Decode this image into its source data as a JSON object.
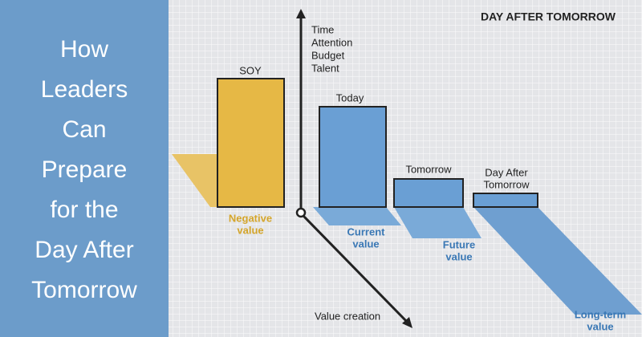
{
  "headline": {
    "lines": [
      "How",
      "Leaders",
      "Can",
      "Prepare",
      "for the",
      "Day After",
      "Tomorrow"
    ]
  },
  "diagram": {
    "title": "DAY AFTER TOMORROW",
    "vertical_axis": {
      "lines": [
        "Time",
        "Attention",
        "Budget",
        "Talent"
      ]
    },
    "diagonal_axis": {
      "label": "Value creation"
    },
    "boxes": [
      {
        "label": [
          "SOY"
        ],
        "value_label": [
          "Negative",
          "value"
        ]
      },
      {
        "label": [
          "Today"
        ],
        "value_label": [
          "Current",
          "value"
        ]
      },
      {
        "label": [
          "Tomorrow"
        ],
        "value_label": [
          "Future",
          "value"
        ]
      },
      {
        "label": [
          "Day After",
          "Tomorrow"
        ],
        "value_label": [
          "Long-term",
          "value"
        ]
      }
    ]
  }
}
